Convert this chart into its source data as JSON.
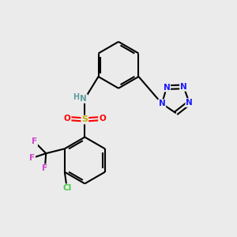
{
  "background_color": "#ebebeb",
  "bond_color": "#000000",
  "atom_colors": {
    "N": "#1a1aff",
    "NH_color": "#5f9ea0",
    "S": "#ccaa00",
    "O": "#ff0000",
    "F": "#cc44cc",
    "Cl": "#44cc44",
    "C": "#000000"
  },
  "figsize": [
    3.0,
    3.0
  ],
  "dpi": 100
}
